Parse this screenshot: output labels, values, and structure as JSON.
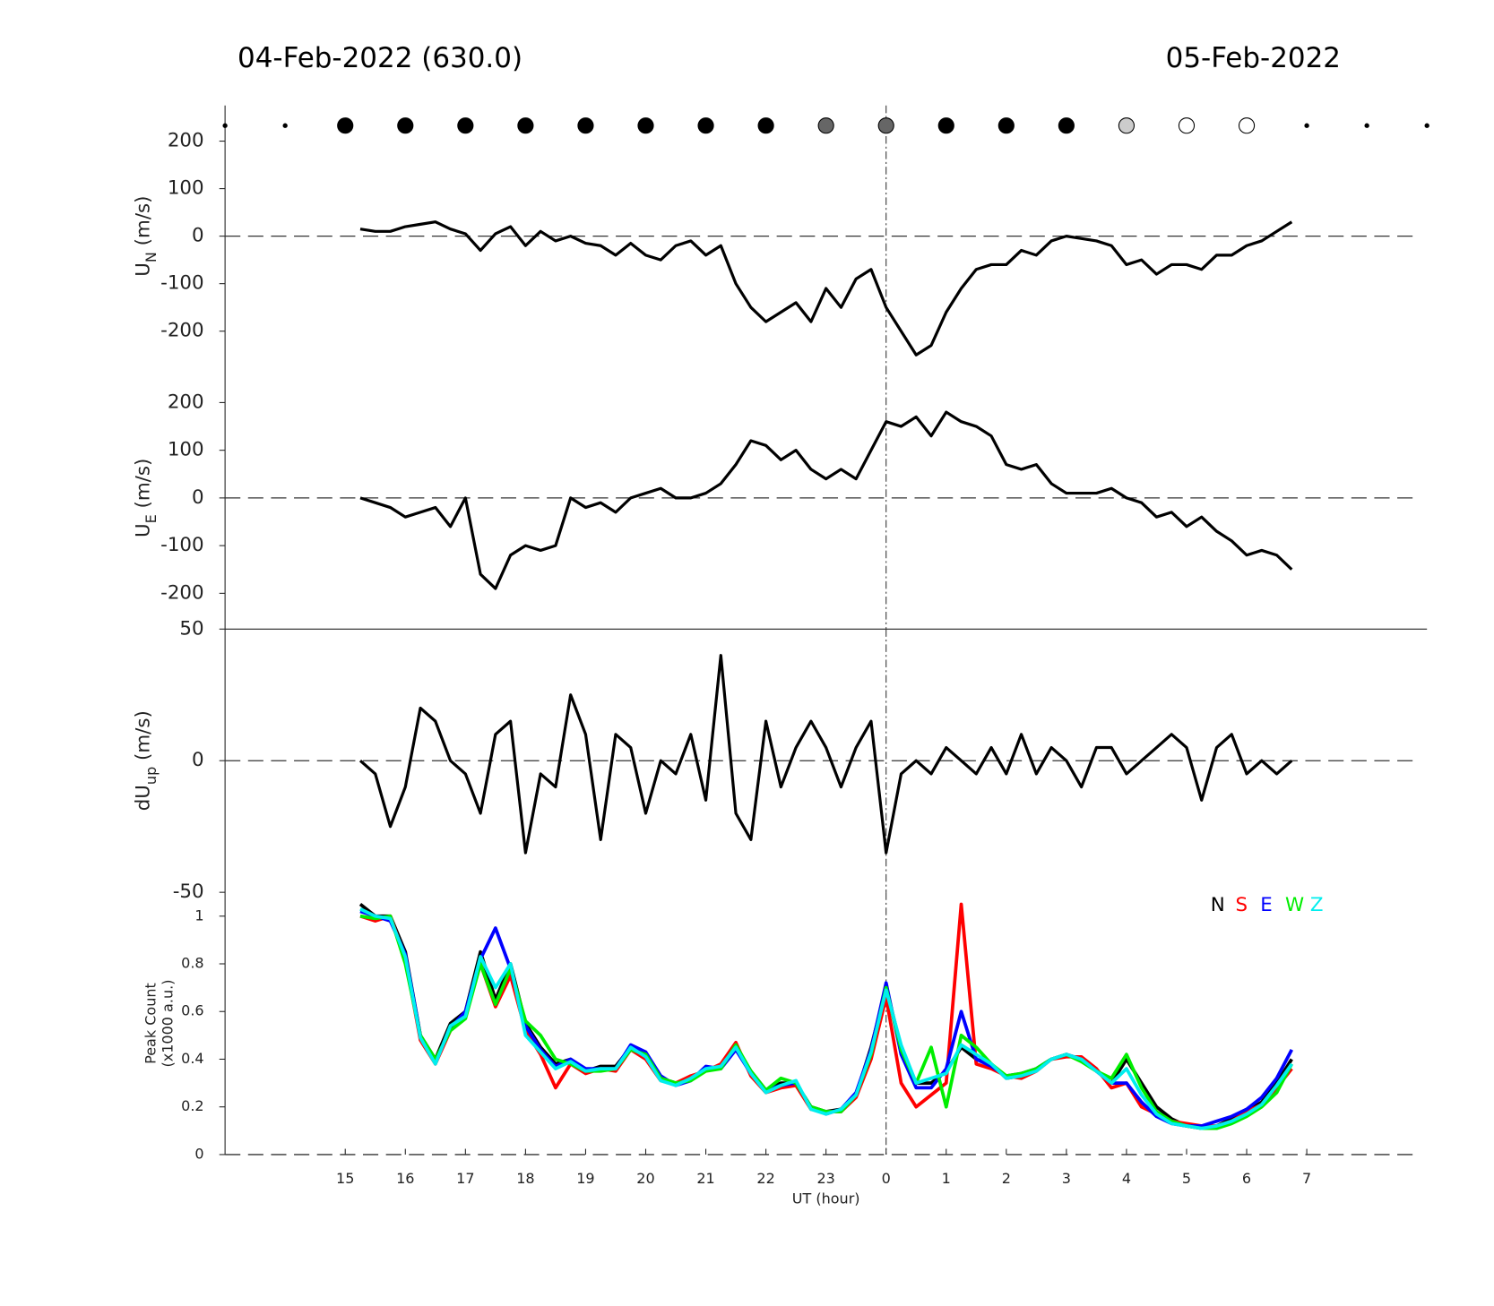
{
  "chart_data": [
    {
      "type": "line",
      "title": "04-Feb-2022 (630.0)",
      "title_right": "05-Feb-2022",
      "ylabel": {
        "text": "U",
        "sub": "N",
        "unit": " (m/s)"
      },
      "xlim": [
        13,
        33
      ],
      "ylim": [
        -275,
        275
      ],
      "yticks": [
        -200,
        -100,
        0,
        100,
        200
      ],
      "hline": 0,
      "vline": 24,
      "sky_x": [
        13,
        14,
        15,
        16,
        17,
        18,
        19,
        20,
        21,
        22,
        23,
        24,
        25,
        26,
        27,
        28,
        29,
        30,
        31,
        32,
        33
      ],
      "sky_colors": [
        "#000",
        "#000",
        "#000",
        "#000",
        "#000",
        "#000",
        "#000",
        "#000",
        "#000",
        "#000",
        "#666",
        "#666",
        "#000",
        "#000",
        "#000",
        "#ccc",
        "#fff",
        "#fff",
        "#000",
        "#000",
        "#000"
      ],
      "sky_sizes": [
        2,
        2,
        8,
        8,
        8,
        8,
        8,
        8,
        8,
        8,
        8,
        8,
        8,
        8,
        8,
        8,
        8,
        8,
        2,
        2,
        2
      ],
      "x": [
        15.25,
        15.5,
        15.75,
        16,
        16.25,
        16.5,
        16.75,
        17,
        17.25,
        17.5,
        17.75,
        18,
        18.25,
        18.5,
        18.75,
        19,
        19.25,
        19.5,
        19.75,
        20,
        20.25,
        20.5,
        20.75,
        21,
        21.25,
        21.5,
        21.75,
        22,
        22.25,
        22.5,
        22.75,
        23,
        23.25,
        23.5,
        23.75,
        24,
        24.25,
        24.5,
        24.75,
        25,
        25.25,
        25.5,
        25.75,
        26,
        26.25,
        26.5,
        26.75,
        27,
        27.25,
        27.5,
        27.75,
        28,
        28.25,
        28.5,
        28.75,
        29,
        29.25,
        29.5,
        29.75,
        30,
        30.25,
        30.5,
        30.75
      ],
      "series": [
        {
          "color": "#000",
          "values": [
            15,
            10,
            10,
            20,
            25,
            30,
            15,
            5,
            -30,
            5,
            20,
            -20,
            10,
            -10,
            0,
            -15,
            -20,
            -40,
            -15,
            -40,
            -50,
            -20,
            -10,
            -40,
            -20,
            -100,
            -150,
            -180,
            -160,
            -140,
            -180,
            -110,
            -150,
            -90,
            -70,
            -150,
            -200,
            -250,
            -230,
            -160,
            -110,
            -70,
            -60,
            -60,
            -30,
            -40,
            -10,
            0,
            -5,
            -10,
            -20,
            -60,
            -50,
            -80,
            -60,
            -60,
            -70,
            -40,
            -40,
            -20,
            -10,
            10,
            30
          ]
        }
      ]
    },
    {
      "type": "line",
      "ylabel": {
        "text": "U",
        "sub": "E",
        "unit": " (m/s)"
      },
      "xlim": [
        13,
        33
      ],
      "ylim": [
        -275,
        275
      ],
      "yticks": [
        -200,
        -100,
        0,
        100,
        200
      ],
      "hline": 0,
      "vline": 24,
      "x": [
        15.25,
        15.5,
        15.75,
        16,
        16.25,
        16.5,
        16.75,
        17,
        17.25,
        17.5,
        17.75,
        18,
        18.25,
        18.5,
        18.75,
        19,
        19.25,
        19.5,
        19.75,
        20,
        20.25,
        20.5,
        20.75,
        21,
        21.25,
        21.5,
        21.75,
        22,
        22.25,
        22.5,
        22.75,
        23,
        23.25,
        23.5,
        23.75,
        24,
        24.25,
        24.5,
        24.75,
        25,
        25.25,
        25.5,
        25.75,
        26,
        26.25,
        26.5,
        26.75,
        27,
        27.25,
        27.5,
        27.75,
        28,
        28.25,
        28.5,
        28.75,
        29,
        29.25,
        29.5,
        29.75,
        30,
        30.25,
        30.5,
        30.75
      ],
      "series": [
        {
          "color": "#000",
          "values": [
            0,
            -10,
            -20,
            -40,
            -30,
            -20,
            -60,
            0,
            -160,
            -190,
            -120,
            -100,
            -110,
            -100,
            0,
            -20,
            -10,
            -30,
            0,
            10,
            20,
            0,
            0,
            10,
            30,
            70,
            120,
            110,
            80,
            100,
            60,
            40,
            60,
            40,
            100,
            160,
            150,
            170,
            130,
            180,
            160,
            150,
            130,
            70,
            60,
            70,
            30,
            10,
            10,
            10,
            20,
            0,
            -10,
            -40,
            -30,
            -60,
            -40,
            -70,
            -90,
            -120,
            -110,
            -120,
            -150
          ]
        }
      ]
    },
    {
      "type": "line",
      "ylabel": {
        "text": "dU",
        "sub": "up",
        "unit": " (m/s)"
      },
      "xlim": [
        13,
        33
      ],
      "ylim": [
        -50,
        50
      ],
      "yticks": [
        -50,
        0,
        50
      ],
      "hline": 0,
      "vline": 24,
      "x": [
        15.25,
        15.5,
        15.75,
        16,
        16.25,
        16.5,
        16.75,
        17,
        17.25,
        17.5,
        17.75,
        18,
        18.25,
        18.5,
        18.75,
        19,
        19.25,
        19.5,
        19.75,
        20,
        20.25,
        20.5,
        20.75,
        21,
        21.25,
        21.5,
        21.75,
        22,
        22.25,
        22.5,
        22.75,
        23,
        23.25,
        23.5,
        23.75,
        24,
        24.25,
        24.5,
        24.75,
        25,
        25.25,
        25.5,
        25.75,
        26,
        26.25,
        26.5,
        26.75,
        27,
        27.25,
        27.5,
        27.75,
        28,
        28.25,
        28.5,
        28.75,
        29,
        29.25,
        29.5,
        29.75,
        30,
        30.25,
        30.5,
        30.75
      ],
      "series": [
        {
          "color": "#000",
          "values": [
            0,
            -5,
            -25,
            -10,
            20,
            15,
            0,
            -5,
            -20,
            10,
            15,
            -35,
            -5,
            -10,
            25,
            10,
            -30,
            10,
            5,
            -20,
            0,
            -5,
            10,
            -15,
            40,
            -20,
            -30,
            15,
            -10,
            5,
            15,
            5,
            -10,
            5,
            15,
            -35,
            -5,
            0,
            -5,
            5,
            0,
            -5,
            5,
            -5,
            10,
            -5,
            5,
            0,
            -10,
            5,
            5,
            -5,
            0,
            5,
            10,
            5,
            -15,
            5,
            10,
            -5,
            0,
            -5,
            0
          ]
        }
      ]
    },
    {
      "type": "line",
      "ylabel": {
        "text": "Peak Count",
        "line2": "(x1000 a.u.)"
      },
      "xlabel": "UT (hour)",
      "xlim": [
        13,
        33
      ],
      "ylim": [
        0,
        1.1
      ],
      "yticks": [
        0,
        0.2,
        0.4,
        0.6,
        0.8,
        1
      ],
      "hline": 0,
      "vline": 24,
      "xticks": [
        15,
        16,
        17,
        18,
        19,
        20,
        21,
        22,
        23,
        {
          "value": 24,
          "label": "0"
        },
        {
          "value": 25,
          "label": "1"
        },
        {
          "value": 26,
          "label": "2"
        },
        {
          "value": 27,
          "label": "3"
        },
        {
          "value": 28,
          "label": "4"
        },
        {
          "value": 29,
          "label": "5"
        },
        {
          "value": 30,
          "label": "6"
        },
        {
          "value": 31,
          "label": "7"
        }
      ],
      "x": [
        15.25,
        15.5,
        15.75,
        16,
        16.25,
        16.5,
        16.75,
        17,
        17.25,
        17.5,
        17.75,
        18,
        18.25,
        18.5,
        18.75,
        19,
        19.25,
        19.5,
        19.75,
        20,
        20.25,
        20.5,
        20.75,
        21,
        21.25,
        21.5,
        21.75,
        22,
        22.25,
        22.5,
        22.75,
        23,
        23.25,
        23.5,
        23.75,
        24,
        24.25,
        24.5,
        24.75,
        25,
        25.25,
        25.5,
        25.75,
        26,
        26.25,
        26.5,
        26.75,
        27,
        27.25,
        27.5,
        27.75,
        28,
        28.25,
        28.5,
        28.75,
        29,
        29.25,
        29.5,
        29.75,
        30,
        30.25,
        30.5,
        30.75
      ],
      "series": [
        {
          "name": "N",
          "color": "#000000",
          "values": [
            1.05,
            1.0,
            1.0,
            0.85,
            0.5,
            0.4,
            0.55,
            0.6,
            0.85,
            0.65,
            0.8,
            0.55,
            0.45,
            0.38,
            0.4,
            0.35,
            0.37,
            0.37,
            0.45,
            0.42,
            0.32,
            0.3,
            0.32,
            0.36,
            0.37,
            0.45,
            0.35,
            0.27,
            0.3,
            0.3,
            0.2,
            0.18,
            0.19,
            0.25,
            0.45,
            0.7,
            0.45,
            0.3,
            0.3,
            0.35,
            0.45,
            0.4,
            0.38,
            0.32,
            0.33,
            0.36,
            0.4,
            0.42,
            0.4,
            0.35,
            0.3,
            0.4,
            0.3,
            0.2,
            0.15,
            0.12,
            0.11,
            0.12,
            0.15,
            0.18,
            0.22,
            0.3,
            0.4
          ]
        },
        {
          "name": "S",
          "color": "#ff0000",
          "values": [
            1.0,
            0.98,
            1.0,
            0.82,
            0.48,
            0.38,
            0.52,
            0.58,
            0.8,
            0.62,
            0.75,
            0.52,
            0.42,
            0.28,
            0.38,
            0.34,
            0.36,
            0.35,
            0.44,
            0.4,
            0.31,
            0.3,
            0.33,
            0.35,
            0.38,
            0.47,
            0.33,
            0.26,
            0.28,
            0.29,
            0.19,
            0.18,
            0.18,
            0.24,
            0.4,
            0.66,
            0.3,
            0.2,
            0.25,
            0.3,
            1.05,
            0.38,
            0.36,
            0.33,
            0.32,
            0.35,
            0.4,
            0.41,
            0.41,
            0.36,
            0.28,
            0.3,
            0.2,
            0.17,
            0.14,
            0.13,
            0.12,
            0.12,
            0.14,
            0.18,
            0.21,
            0.28,
            0.36
          ]
        },
        {
          "name": "E",
          "color": "#0000ff",
          "values": [
            1.02,
            1.0,
            0.98,
            0.84,
            0.5,
            0.39,
            0.53,
            0.6,
            0.82,
            0.95,
            0.78,
            0.54,
            0.44,
            0.37,
            0.4,
            0.36,
            0.36,
            0.36,
            0.46,
            0.43,
            0.33,
            0.29,
            0.31,
            0.37,
            0.36,
            0.44,
            0.34,
            0.27,
            0.29,
            0.3,
            0.2,
            0.17,
            0.19,
            0.26,
            0.44,
            0.72,
            0.42,
            0.28,
            0.28,
            0.36,
            0.6,
            0.4,
            0.37,
            0.33,
            0.34,
            0.36,
            0.4,
            0.42,
            0.4,
            0.35,
            0.3,
            0.3,
            0.22,
            0.16,
            0.13,
            0.12,
            0.12,
            0.14,
            0.16,
            0.19,
            0.24,
            0.32,
            0.44
          ]
        },
        {
          "name": "W",
          "color": "#00ee00",
          "values": [
            1.0,
            0.99,
            1.0,
            0.8,
            0.5,
            0.4,
            0.52,
            0.57,
            0.8,
            0.63,
            0.78,
            0.56,
            0.5,
            0.4,
            0.38,
            0.35,
            0.35,
            0.36,
            0.44,
            0.42,
            0.32,
            0.3,
            0.31,
            0.35,
            0.36,
            0.46,
            0.35,
            0.27,
            0.32,
            0.3,
            0.2,
            0.18,
            0.18,
            0.25,
            0.42,
            0.7,
            0.44,
            0.3,
            0.45,
            0.2,
            0.5,
            0.45,
            0.38,
            0.33,
            0.34,
            0.36,
            0.4,
            0.42,
            0.39,
            0.35,
            0.32,
            0.42,
            0.28,
            0.18,
            0.14,
            0.12,
            0.11,
            0.11,
            0.13,
            0.16,
            0.2,
            0.26,
            0.38
          ]
        },
        {
          "name": "Z",
          "color": "#00eeee",
          "values": [
            1.03,
            1.0,
            0.99,
            0.83,
            0.49,
            0.38,
            0.54,
            0.58,
            0.83,
            0.7,
            0.8,
            0.5,
            0.43,
            0.36,
            0.39,
            0.35,
            0.36,
            0.36,
            0.45,
            0.41,
            0.31,
            0.29,
            0.32,
            0.36,
            0.37,
            0.45,
            0.34,
            0.26,
            0.29,
            0.31,
            0.19,
            0.17,
            0.19,
            0.25,
            0.43,
            0.69,
            0.46,
            0.3,
            0.32,
            0.34,
            0.46,
            0.42,
            0.38,
            0.32,
            0.33,
            0.35,
            0.4,
            0.42,
            0.4,
            0.35,
            0.3,
            0.36,
            0.25,
            0.17,
            0.13,
            0.12,
            0.11,
            0.12,
            0.14,
            0.17,
            0.21,
            0.29,
            0.38
          ]
        }
      ]
    }
  ]
}
